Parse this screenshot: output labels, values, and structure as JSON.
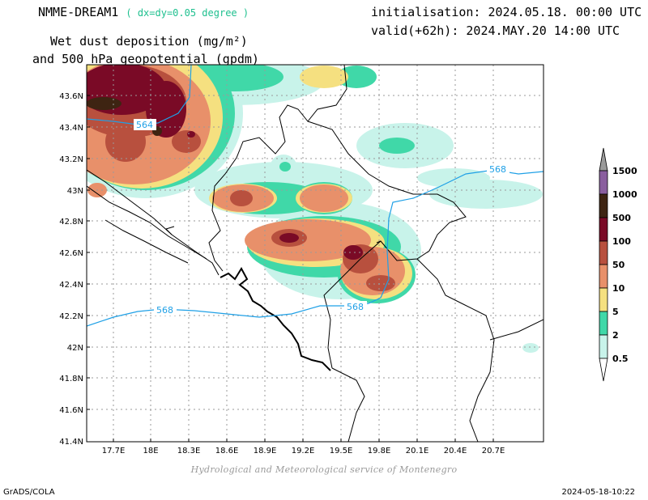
{
  "header": {
    "model": "NMME-DREAM1",
    "resolution": "( dx=dy=0.05 degree )",
    "title_line1": "Wet dust deposition (mg/m²)",
    "title_line2": "and 500 hPa geopotential (gpdm)",
    "initialisation": "initialisation: 2024.05.18. 00:00 UTC",
    "valid": "valid(+62h): 2024.MAY.20 14:00 UTC"
  },
  "axes": {
    "lat_ticks": [
      "43.6N",
      "43.4N",
      "43.2N",
      "43N",
      "42.8N",
      "42.6N",
      "42.4N",
      "42.2N",
      "42N",
      "41.8N",
      "41.6N",
      "41.4N"
    ],
    "lon_ticks": [
      "17.7E",
      "18E",
      "18.3E",
      "18.6E",
      "18.9E",
      "19.2E",
      "19.5E",
      "19.8E",
      "20.1E",
      "20.4E",
      "20.7E"
    ]
  },
  "contours": [
    {
      "label": "564",
      "color": "#1fa0e6"
    },
    {
      "label": "568",
      "color": "#1fa0e6"
    },
    {
      "label": "568",
      "color": "#1fa0e6"
    },
    {
      "label": "568",
      "color": "#1fa0e6"
    }
  ],
  "legend": {
    "labels": [
      "1500",
      "1000",
      "500",
      "100",
      "50",
      "10",
      "5",
      "2",
      "0.5"
    ],
    "colors": [
      "#9a9a9a",
      "#8a5e9e",
      "#3e2412",
      "#7a0a26",
      "#b8503e",
      "#e8906a",
      "#f5e080",
      "#40d8a8",
      "#c8f3ea"
    ]
  },
  "footer": {
    "credit": "Hydrological and Meteorological service of Montenegro",
    "software": "GrADS/COLA",
    "timestamp": "2024-05-18-10:22"
  }
}
